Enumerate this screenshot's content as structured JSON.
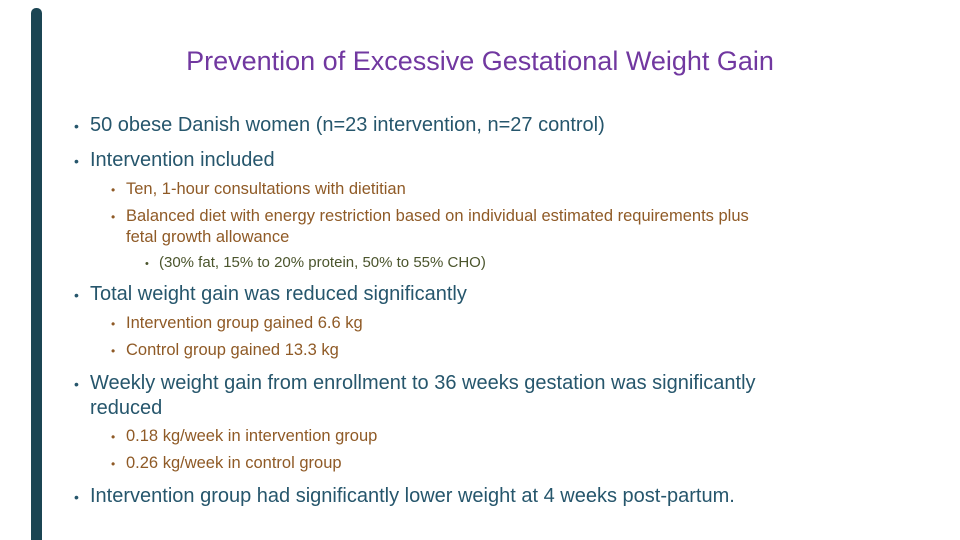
{
  "slide": {
    "title": "Prevention of Excessive Gestational Weight Gain",
    "bullets": [
      {
        "level": 1,
        "color": "teal",
        "lines": [
          "50 obese Danish women (n=23 intervention, n=27 control)"
        ]
      },
      {
        "level": 1,
        "color": "teal",
        "lines": [
          "Intervention included"
        ]
      },
      {
        "level": 2,
        "color": "brown",
        "lines": [
          "Ten, 1-hour consultations with dietitian"
        ]
      },
      {
        "level": 2,
        "color": "brown",
        "lines": [
          "Balanced diet with energy restriction based on individual estimated requirements plus",
          "fetal growth allowance"
        ]
      },
      {
        "level": 3,
        "color": "olive",
        "lines": [
          "(30% fat, 15% to 20% protein, 50% to 55% CHO)"
        ]
      },
      {
        "level": 1,
        "color": "teal",
        "lines": [
          "Total weight gain was reduced significantly"
        ]
      },
      {
        "level": 2,
        "color": "brown",
        "lines": [
          "Intervention group gained 6.6 kg"
        ]
      },
      {
        "level": 2,
        "color": "brown",
        "lines": [
          "Control group gained 13.3 kg"
        ]
      },
      {
        "level": 1,
        "color": "teal",
        "lines": [
          "Weekly weight gain from enrollment to 36 weeks gestation was significantly",
          "reduced"
        ]
      },
      {
        "level": 2,
        "color": "brown",
        "lines": [
          "0.18 kg/week in intervention group"
        ]
      },
      {
        "level": 2,
        "color": "brown",
        "lines": [
          "0.26 kg/week in control group"
        ]
      },
      {
        "level": 1,
        "color": "teal",
        "lines": [
          "Intervention group had significantly lower weight at 4 weeks post-partum."
        ]
      }
    ],
    "bullet_glyph": "•"
  },
  "colors": {
    "background": "#FFFFFF",
    "title": "#7138A0",
    "teal": "#26566C",
    "brown": "#8F5A26",
    "olive": "#4B552D",
    "accent_bar": "#1B4553"
  }
}
